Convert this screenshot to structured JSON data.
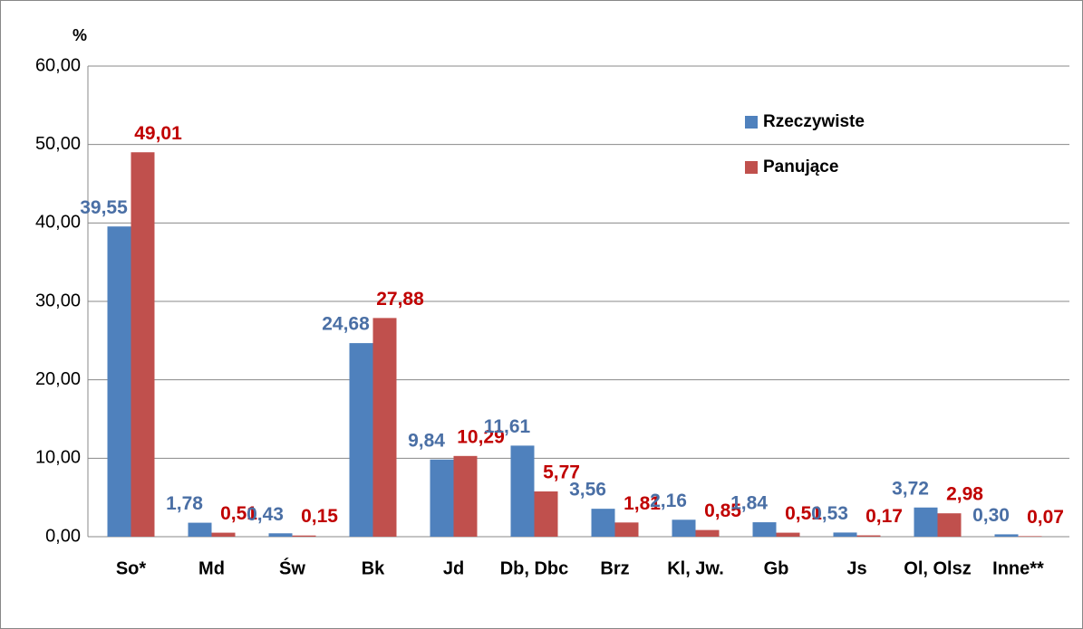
{
  "chart_data": {
    "type": "bar",
    "ylabel": "%",
    "categories": [
      "So*",
      "Md",
      "Św",
      "Bk",
      "Jd",
      "Db, Dbc",
      "Brz",
      "Kl, Jw.",
      "Gb",
      "Js",
      "Ol, Olsz",
      "Inne**"
    ],
    "series": [
      {
        "name": "Rzeczywiste",
        "color": "#4f81bd",
        "label_color": "#4a6fa5",
        "values": [
          39.55,
          1.78,
          0.43,
          24.68,
          9.84,
          11.61,
          3.56,
          2.16,
          1.84,
          0.53,
          3.72,
          0.3
        ],
        "value_labels": [
          "39,55",
          "1,78",
          "0,43",
          "24,68",
          "9,84",
          "11,61",
          "3,56",
          "2,16",
          "1,84",
          "0,53",
          "3,72",
          "0,30"
        ]
      },
      {
        "name": "Panujące",
        "color": "#c0504d",
        "label_color": "#c00000",
        "values": [
          49.01,
          0.51,
          0.15,
          27.88,
          10.29,
          5.77,
          1.81,
          0.85,
          0.51,
          0.17,
          2.98,
          0.07
        ],
        "value_labels": [
          "49,01",
          "0,51",
          "0,15",
          "27,88",
          "10,29",
          "5,77",
          "1,81",
          "0,85",
          "0,51",
          "0,17",
          "2,98",
          "0,07"
        ]
      }
    ],
    "ylim": [
      0,
      60
    ],
    "yticks": [
      {
        "value": 0,
        "label": "0,00"
      },
      {
        "value": 10,
        "label": "10,00"
      },
      {
        "value": 20,
        "label": "20,00"
      },
      {
        "value": 30,
        "label": "30,00"
      },
      {
        "value": 40,
        "label": "40,00"
      },
      {
        "value": 50,
        "label": "50,00"
      },
      {
        "value": 60,
        "label": "60,00"
      }
    ],
    "grid": true,
    "legend": "upper right"
  }
}
